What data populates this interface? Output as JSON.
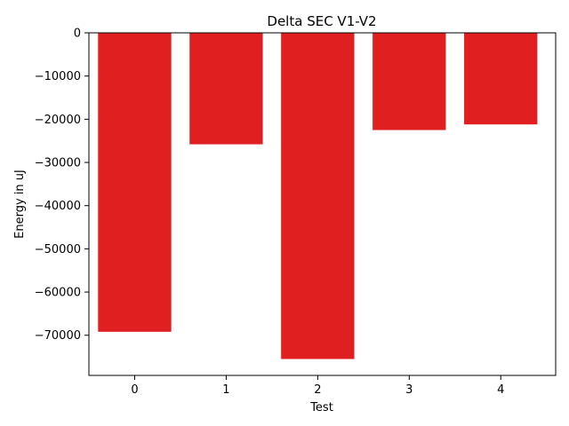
{
  "chart_data": {
    "type": "bar",
    "title": "Delta SEC V1-V2",
    "xlabel": "Test",
    "ylabel": "Energy in uJ",
    "categories": [
      "0",
      "1",
      "2",
      "3",
      "4"
    ],
    "values": [
      -69200,
      -25800,
      -75500,
      -22500,
      -21200
    ],
    "ylim": [
      -79300,
      0
    ],
    "yticks": [
      0,
      -10000,
      -20000,
      -30000,
      -40000,
      -50000,
      -60000,
      -70000
    ],
    "ytick_labels": [
      "0",
      "−10000",
      "−20000",
      "−30000",
      "−40000",
      "−50000",
      "−60000",
      "−70000"
    ],
    "bar_color": "#e02020",
    "grid": false,
    "legend": "none"
  }
}
